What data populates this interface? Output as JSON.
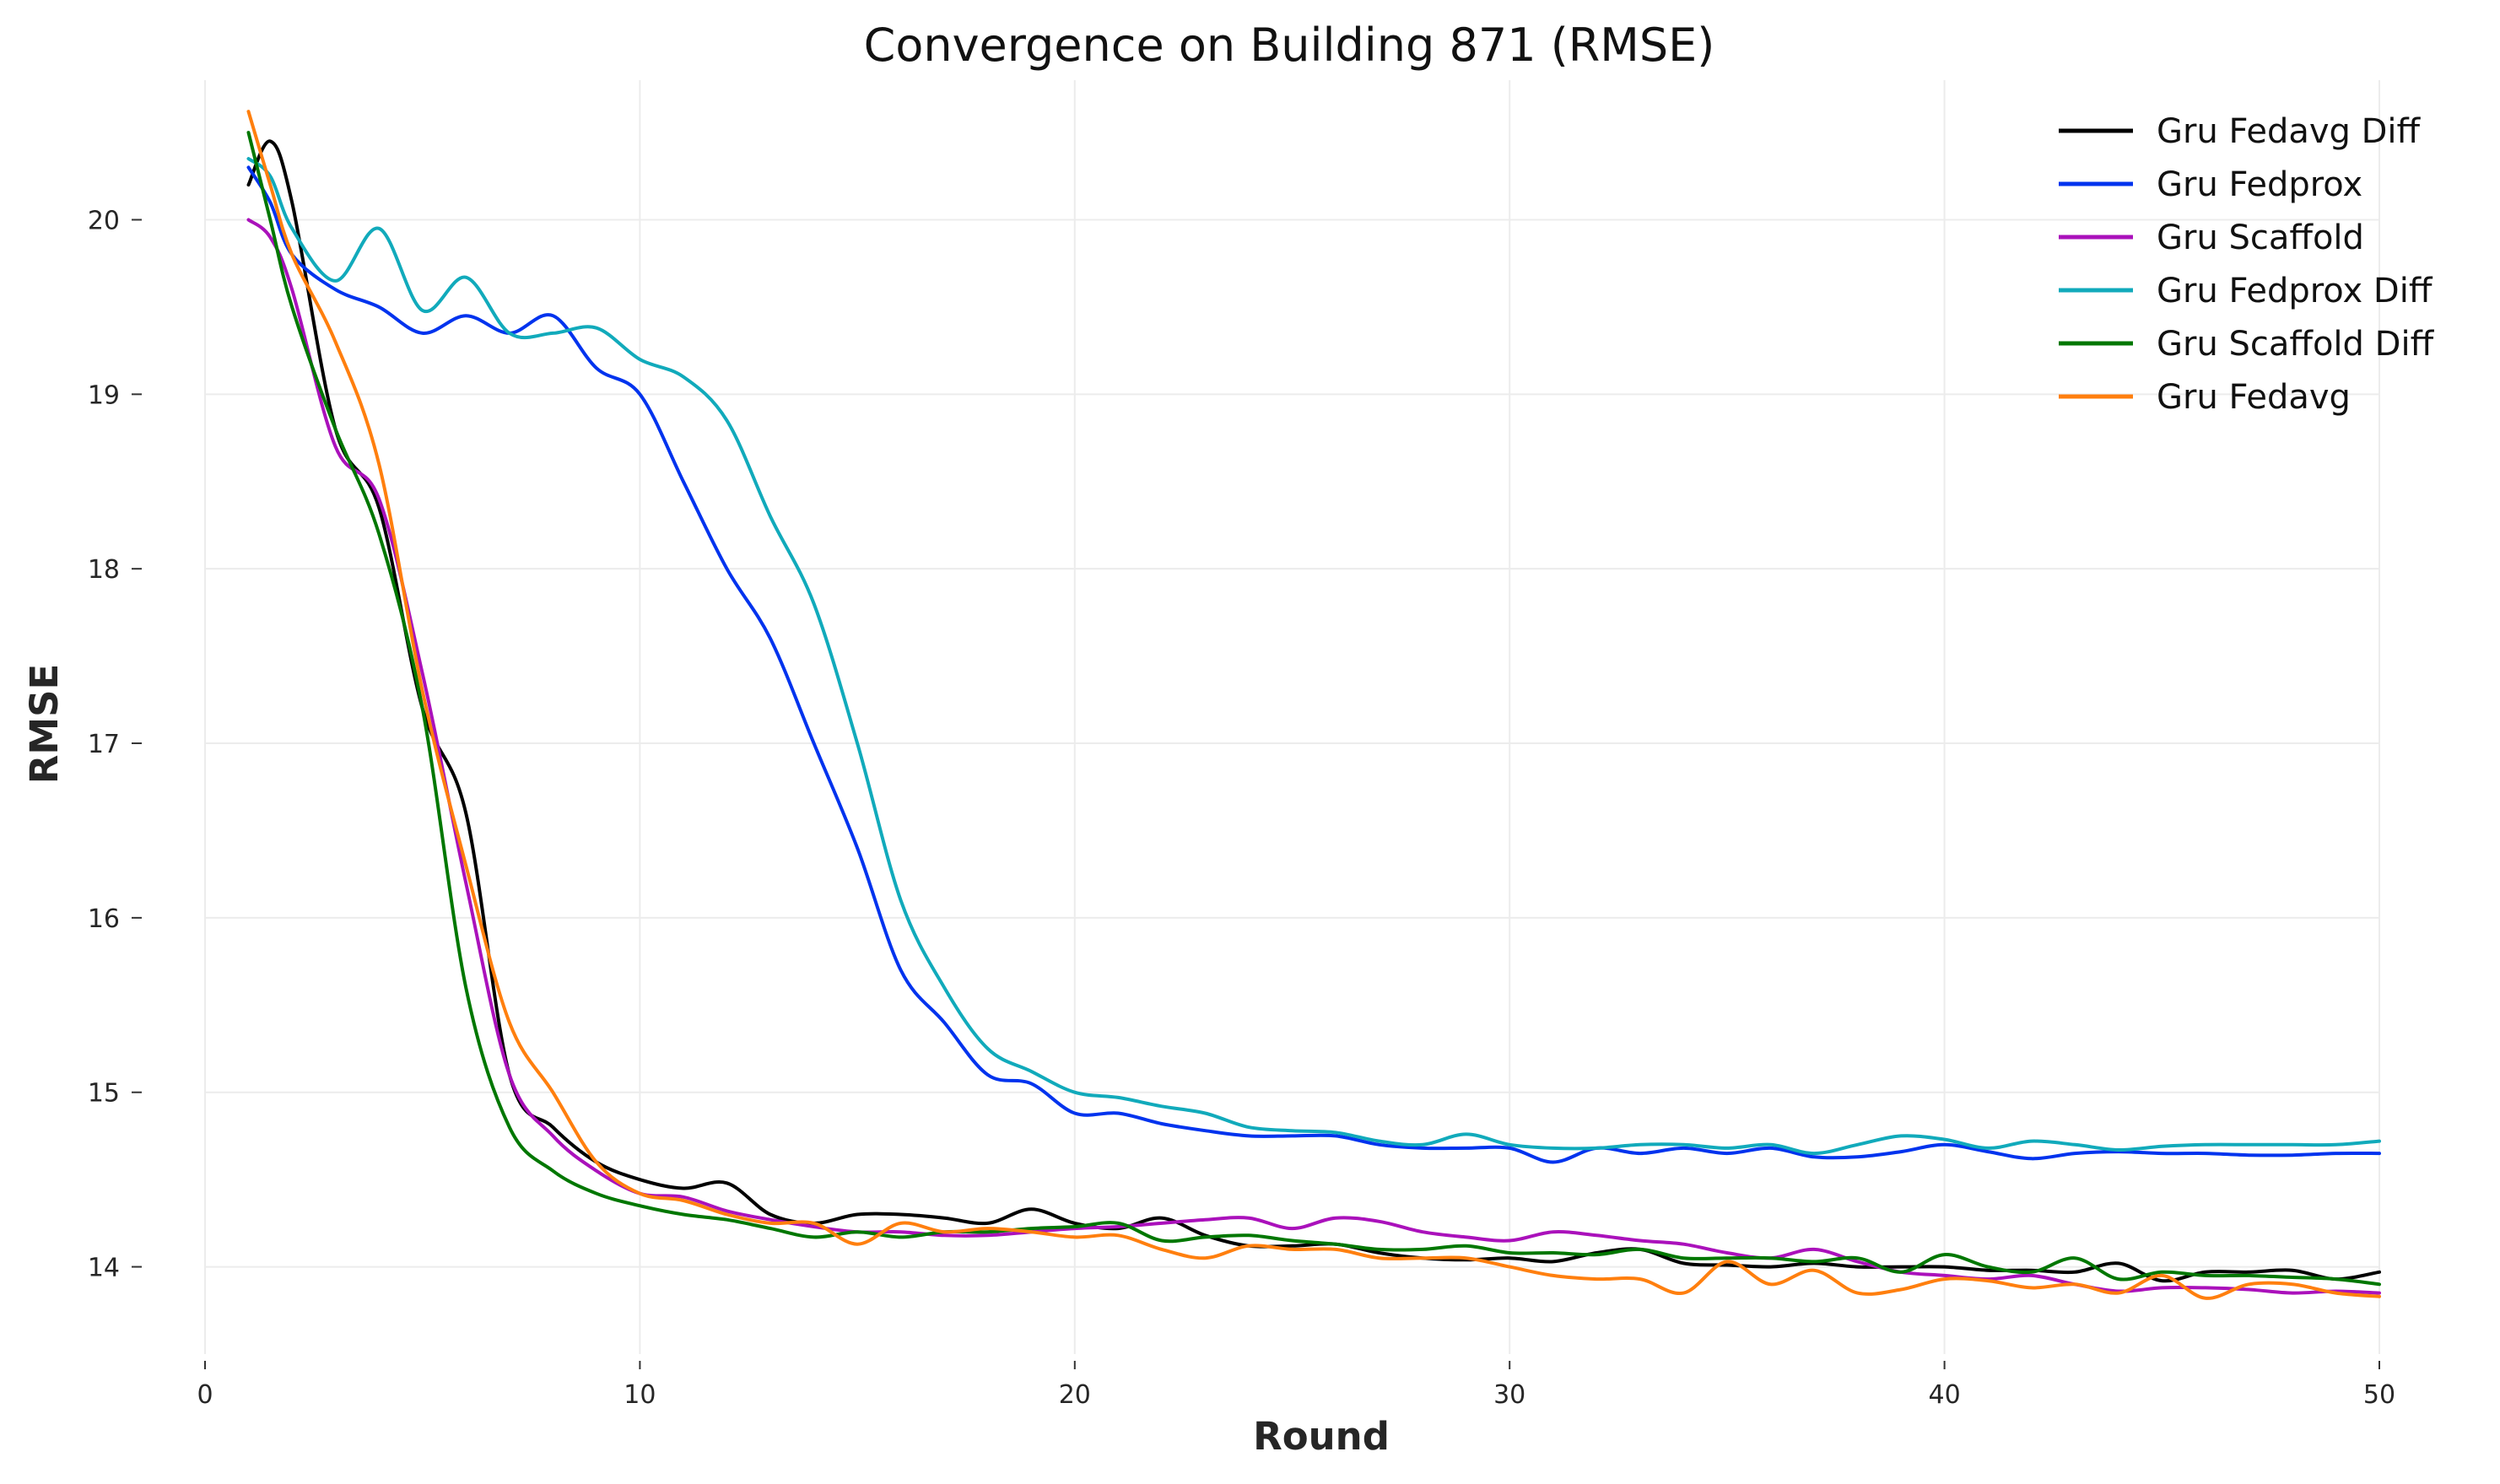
{
  "chart_data": {
    "type": "line",
    "title": "Convergence on Building 871 (RMSE)",
    "xlabel": "Round",
    "ylabel": "RMSE",
    "xlim": [
      0,
      50
    ],
    "ylim": [
      13.5,
      20.8
    ],
    "xticks": [
      0,
      10,
      20,
      30,
      40,
      50
    ],
    "yticks": [
      14,
      15,
      16,
      17,
      18,
      19,
      20
    ],
    "grid": true,
    "legend_position": "top-right",
    "x": [
      1,
      1.5,
      2,
      3,
      4,
      5,
      6,
      7,
      8,
      9,
      10,
      11,
      12,
      13,
      14,
      15,
      16,
      17,
      18,
      19,
      20,
      21,
      22,
      23,
      24,
      25,
      26,
      27,
      28,
      29,
      30,
      31,
      32,
      33,
      34,
      35,
      36,
      37,
      38,
      39,
      40,
      41,
      42,
      43,
      44,
      45,
      46,
      47,
      48,
      49,
      50
    ],
    "series": [
      {
        "name": "Gru Fedavg Diff",
        "color": "#000000",
        "values": [
          20.2,
          20.45,
          20.1,
          18.8,
          18.35,
          17.2,
          16.6,
          15.1,
          14.8,
          14.6,
          14.5,
          14.45,
          14.48,
          14.3,
          14.25,
          14.3,
          14.3,
          14.28,
          14.25,
          14.33,
          14.25,
          14.22,
          14.28,
          14.18,
          14.12,
          14.12,
          14.13,
          14.08,
          14.05,
          14.04,
          14.05,
          14.03,
          14.08,
          14.1,
          14.02,
          14.01,
          14.0,
          14.02,
          14.0,
          14.0,
          14.0,
          13.98,
          13.98,
          13.97,
          14.02,
          13.92,
          13.97,
          13.97,
          13.98,
          13.93,
          13.97
        ]
      },
      {
        "name": "Gru Fedprox",
        "color": "#0033ee",
        "values": [
          20.3,
          20.1,
          19.8,
          19.6,
          19.5,
          19.35,
          19.45,
          19.35,
          19.45,
          19.15,
          19.0,
          18.5,
          18.0,
          17.6,
          17.0,
          16.4,
          15.7,
          15.4,
          15.1,
          15.05,
          14.88,
          14.88,
          14.82,
          14.78,
          14.75,
          14.75,
          14.75,
          14.7,
          14.68,
          14.68,
          14.68,
          14.6,
          14.68,
          14.65,
          14.68,
          14.65,
          14.68,
          14.63,
          14.63,
          14.66,
          14.7,
          14.66,
          14.62,
          14.65,
          14.66,
          14.65,
          14.65,
          14.64,
          14.64,
          14.65,
          14.65
        ]
      },
      {
        "name": "Gru Scaffold",
        "color": "#aa11bb",
        "values": [
          20.0,
          19.9,
          19.6,
          18.7,
          18.4,
          17.4,
          16.2,
          15.1,
          14.75,
          14.55,
          14.42,
          14.4,
          14.32,
          14.27,
          14.23,
          14.2,
          14.2,
          14.18,
          14.18,
          14.2,
          14.22,
          14.23,
          14.25,
          14.27,
          14.28,
          14.22,
          14.28,
          14.26,
          14.2,
          14.17,
          14.15,
          14.2,
          14.18,
          14.15,
          14.13,
          14.08,
          14.05,
          14.1,
          14.03,
          13.97,
          13.95,
          13.93,
          13.95,
          13.9,
          13.86,
          13.88,
          13.88,
          13.87,
          13.85,
          13.86,
          13.85
        ]
      },
      {
        "name": "Gru Fedprox Diff",
        "color": "#11aabb",
        "values": [
          20.35,
          20.25,
          19.95,
          19.65,
          19.95,
          19.48,
          19.67,
          19.35,
          19.35,
          19.38,
          19.2,
          19.1,
          18.85,
          18.3,
          17.8,
          17.0,
          16.1,
          15.6,
          15.25,
          15.12,
          15.0,
          14.97,
          14.92,
          14.88,
          14.8,
          14.78,
          14.77,
          14.72,
          14.7,
          14.76,
          14.7,
          14.68,
          14.68,
          14.7,
          14.7,
          14.68,
          14.7,
          14.65,
          14.7,
          14.75,
          14.73,
          14.68,
          14.72,
          14.7,
          14.67,
          14.69,
          14.7,
          14.7,
          14.7,
          14.7,
          14.72
        ]
      },
      {
        "name": "Gru Scaffold Diff",
        "color": "#007700",
        "values": [
          20.5,
          20.0,
          19.5,
          18.8,
          18.2,
          17.2,
          15.6,
          14.8,
          14.55,
          14.42,
          14.35,
          14.3,
          14.27,
          14.22,
          14.17,
          14.2,
          14.17,
          14.2,
          14.2,
          14.22,
          14.23,
          14.25,
          14.15,
          14.17,
          14.18,
          14.15,
          14.13,
          14.1,
          14.1,
          14.12,
          14.08,
          14.08,
          14.07,
          14.1,
          14.05,
          14.05,
          14.05,
          14.03,
          14.05,
          13.97,
          14.07,
          14.0,
          13.97,
          14.05,
          13.93,
          13.97,
          13.95,
          13.95,
          13.94,
          13.93,
          13.9
        ]
      },
      {
        "name": "Gru Fedavg",
        "color": "#ff7f0e",
        "values": [
          20.62,
          20.2,
          19.8,
          19.3,
          18.6,
          17.3,
          16.3,
          15.4,
          15.0,
          14.6,
          14.42,
          14.38,
          14.3,
          14.25,
          14.25,
          14.13,
          14.25,
          14.2,
          14.22,
          14.2,
          14.17,
          14.18,
          14.1,
          14.05,
          14.12,
          14.1,
          14.1,
          14.05,
          14.05,
          14.05,
          14.0,
          13.95,
          13.93,
          13.93,
          13.85,
          14.03,
          13.9,
          13.98,
          13.85,
          13.87,
          13.93,
          13.92,
          13.88,
          13.9,
          13.85,
          13.95,
          13.82,
          13.9,
          13.9,
          13.85,
          13.83
        ]
      }
    ]
  }
}
